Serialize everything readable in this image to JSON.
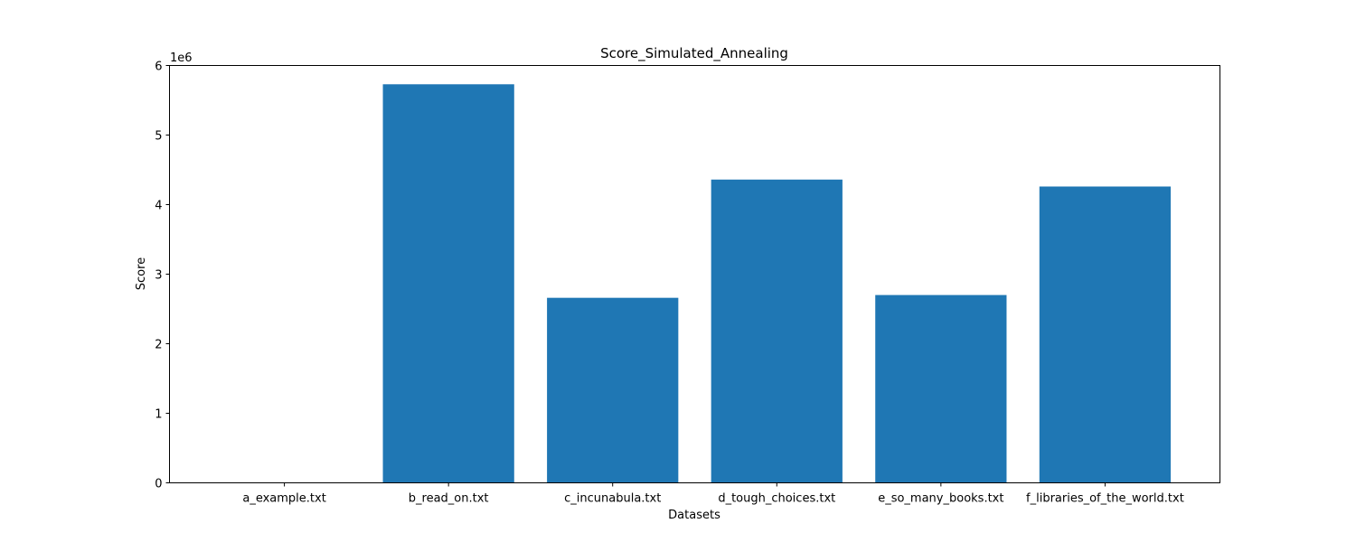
{
  "chart_data": {
    "type": "bar",
    "title": "Score_Simulated_Annealing",
    "xlabel": "Datasets",
    "ylabel": "Score",
    "y_offset_label": "1e6",
    "categories": [
      "a_example.txt",
      "b_read_on.txt",
      "c_incunabula.txt",
      "d_tough_choices.txt",
      "e_so_many_books.txt",
      "f_libraries_of_the_world.txt"
    ],
    "values": [
      21,
      5730000,
      2660000,
      4360000,
      2700000,
      4260000
    ],
    "ylim": [
      0,
      6000000
    ],
    "yticks": [
      0,
      1000000,
      2000000,
      3000000,
      4000000,
      5000000,
      6000000
    ],
    "ytick_labels": [
      "0",
      "1",
      "2",
      "3",
      "4",
      "5",
      "6"
    ],
    "bar_color": "#1f77b4",
    "grid": false
  }
}
